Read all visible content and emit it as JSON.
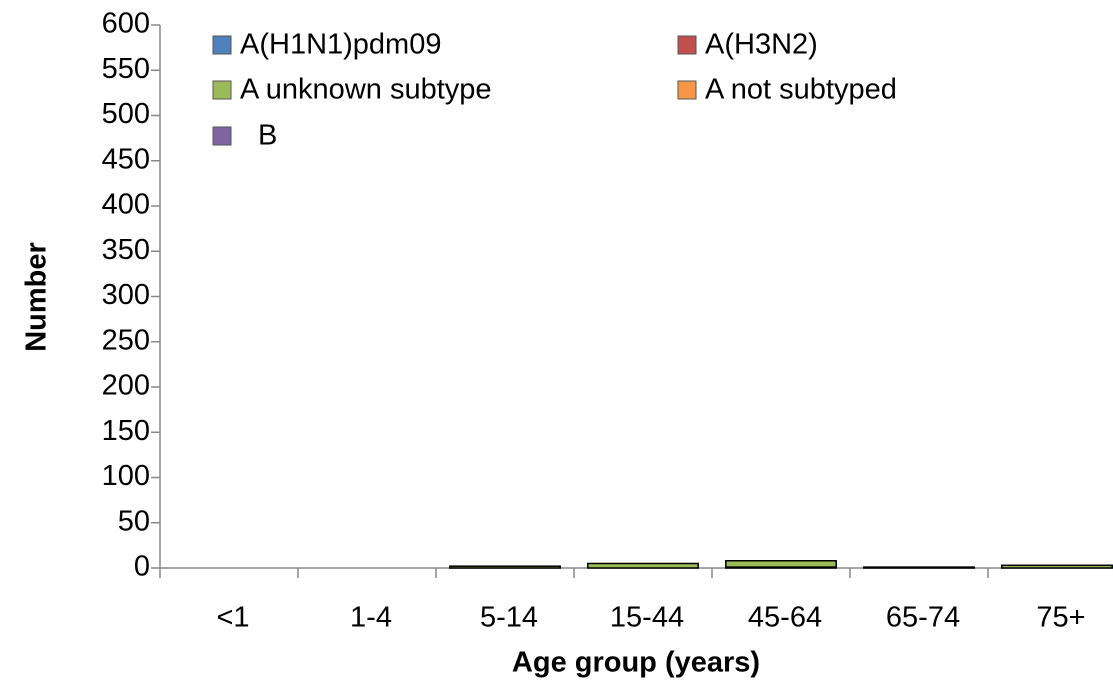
{
  "chart_data": {
    "type": "stacked_bar",
    "x_label": "Age group (years)",
    "y_label": "Number",
    "categories": [
      "<1",
      "1-4",
      "5-14",
      "15-44",
      "45-64",
      "65-74",
      "75+"
    ],
    "series": [
      {
        "name": "A(H1N1)pdm09",
        "color": "#4f81bd",
        "values": [
          0,
          0,
          0,
          0,
          1,
          0,
          0
        ]
      },
      {
        "name": "A(H3N2)",
        "color": "#c0504d",
        "values": [
          0,
          0,
          0,
          0,
          0,
          0,
          0
        ]
      },
      {
        "name": "A unknown subtype",
        "color": "#9bbb59",
        "values": [
          0,
          0,
          2,
          5,
          7,
          1,
          3
        ]
      },
      {
        "name": "A not subtyped",
        "color": "#f79646",
        "values": [
          0,
          0,
          0,
          0,
          0,
          0,
          0
        ]
      },
      {
        "name": "B",
        "color": "#8064a2",
        "values": [
          0,
          0,
          0,
          0,
          0,
          0,
          0
        ]
      }
    ],
    "ylim": [
      0,
      600
    ],
    "yticks": [
      0,
      50,
      100,
      150,
      200,
      250,
      300,
      350,
      400,
      450,
      500,
      550,
      600
    ],
    "legend": "top"
  }
}
